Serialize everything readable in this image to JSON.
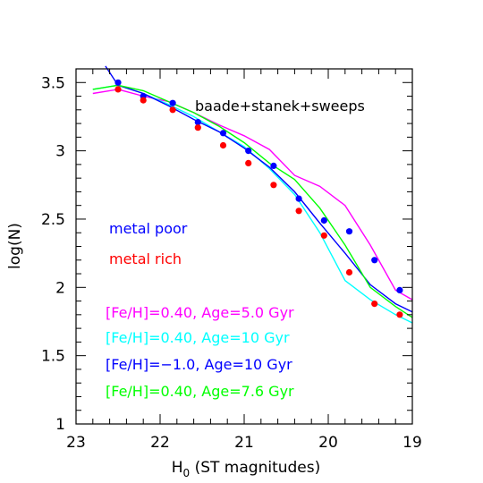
{
  "chart_data": {
    "type": "scatter",
    "title": "",
    "xlabel": {
      "main": "H",
      "sub": "0",
      "rest": " (ST magnitudes)"
    },
    "ylabel": "log(N)",
    "xlim": [
      23,
      19
    ],
    "ylim": [
      1,
      3.6
    ],
    "x_ticks": [
      {
        "value": 23,
        "label": "23"
      },
      {
        "value": 22,
        "label": "22"
      },
      {
        "value": 21,
        "label": "21"
      },
      {
        "value": 20,
        "label": "20"
      },
      {
        "value": 19,
        "label": "19"
      }
    ],
    "y_ticks": [
      {
        "value": 1,
        "label": "1"
      },
      {
        "value": 1.5,
        "label": "1.5"
      },
      {
        "value": 2,
        "label": "2"
      },
      {
        "value": 2.5,
        "label": "2.5"
      },
      {
        "value": 3,
        "label": "3"
      },
      {
        "value": 3.5,
        "label": "3.5"
      }
    ],
    "x_minor_step": 0.2,
    "y_minor_step": 0.1,
    "annotations": {
      "dataset": "baade+stanek+sweeps",
      "metal_poor": "metal poor",
      "metal_rich": "metal rich",
      "line_magenta": "[Fe/H]=0.40, Age=5.0 Gyr",
      "line_cyan": "[Fe/H]=0.40, Age=10 Gyr",
      "line_blue": "[Fe/H]=−1.0, Age=10 Gyr",
      "line_green": "[Fe/H]=0.40, Age=7.6 Gyr"
    },
    "points": [
      {
        "name": "metal poor",
        "color": "#0000ff",
        "x": [
          22.5,
          22.2,
          21.85,
          21.55,
          21.25,
          20.95,
          20.65,
          20.35,
          20.05,
          19.75,
          19.45,
          19.15
        ],
        "y": [
          3.5,
          3.4,
          3.35,
          3.21,
          3.13,
          3.0,
          2.89,
          2.65,
          2.49,
          2.41,
          2.2,
          1.98
        ]
      },
      {
        "name": "metal rich",
        "color": "#ff0000",
        "x": [
          22.5,
          22.2,
          21.85,
          21.55,
          21.25,
          20.95,
          20.65,
          20.35,
          20.05,
          19.75,
          19.45,
          19.15
        ],
        "y": [
          3.45,
          3.37,
          3.3,
          3.17,
          3.04,
          2.91,
          2.75,
          2.56,
          2.38,
          2.11,
          1.88,
          1.8
        ]
      }
    ],
    "series": [
      {
        "name": "[Fe/H]=0.40, Age=5.0 Gyr",
        "color": "#ff00ff",
        "x": [
          22.8,
          22.5,
          22.2,
          21.9,
          21.6,
          21.3,
          21.0,
          20.7,
          20.4,
          20.1,
          19.8,
          19.5,
          19.2,
          19.0
        ],
        "y": [
          3.42,
          3.45,
          3.4,
          3.36,
          3.28,
          3.19,
          3.11,
          3.01,
          2.82,
          2.74,
          2.6,
          2.31,
          1.98,
          1.91
        ]
      },
      {
        "name": "[Fe/H]=0.40, Age=10 Gyr",
        "color": "#00ffff",
        "x": [
          22.8,
          22.5,
          22.2,
          21.9,
          21.6,
          21.3,
          21.0,
          20.7,
          20.4,
          20.1,
          19.8,
          19.5,
          19.2,
          19.0
        ],
        "y": [
          3.45,
          3.48,
          3.42,
          3.34,
          3.25,
          3.14,
          3.03,
          2.87,
          2.68,
          2.4,
          2.05,
          1.91,
          1.8,
          1.74
        ]
      },
      {
        "name": "[Fe/H]=−1.0, Age=10 Gyr",
        "color": "#0000ff",
        "x": [
          22.65,
          22.5,
          22.2,
          21.9,
          21.6,
          21.3,
          21.0,
          20.7,
          20.4,
          20.1,
          19.8,
          19.5,
          19.2,
          19.0
        ],
        "y": [
          3.62,
          3.48,
          3.42,
          3.33,
          3.23,
          3.14,
          3.02,
          2.88,
          2.7,
          2.47,
          2.25,
          2.02,
          1.88,
          1.82
        ]
      },
      {
        "name": "[Fe/H]=0.40, Age=7.6 Gyr",
        "color": "#00ff00",
        "x": [
          22.8,
          22.5,
          22.2,
          21.9,
          21.6,
          21.3,
          21.0,
          20.7,
          20.4,
          20.1,
          19.8,
          19.5,
          19.2,
          19.0
        ],
        "y": [
          3.45,
          3.48,
          3.44,
          3.36,
          3.28,
          3.18,
          3.06,
          2.91,
          2.79,
          2.58,
          2.31,
          2.0,
          1.86,
          1.78
        ]
      }
    ]
  }
}
